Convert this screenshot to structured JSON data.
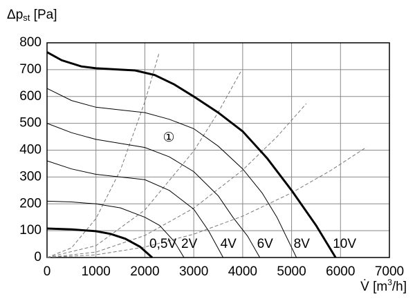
{
  "chart_data": {
    "type": "line",
    "ylabel_parts": [
      "Δp",
      "st",
      " [Pa]"
    ],
    "xlabel_parts": [
      "V̇ [m",
      "3",
      "/h]"
    ],
    "xlim": [
      0,
      7000
    ],
    "ylim": [
      0,
      800
    ],
    "xticks": [
      0,
      1000,
      2000,
      3000,
      4000,
      5000,
      6000,
      7000
    ],
    "yticks": [
      0,
      100,
      200,
      300,
      400,
      500,
      600,
      700,
      800
    ],
    "grid": true,
    "series": [
      {
        "name": "0,5V",
        "color": "#000",
        "line_width": 3,
        "x": [
          0,
          500,
          1000,
          1300,
          1600,
          1900,
          2150
        ],
        "values": [
          108,
          105,
          98,
          88,
          70,
          40,
          0
        ]
      },
      {
        "name": "2V",
        "color": "#000",
        "line_width": 1,
        "x": [
          0,
          500,
          1000,
          1500,
          2000,
          2300,
          2600,
          2800
        ],
        "values": [
          210,
          207,
          200,
          185,
          150,
          120,
          60,
          0
        ]
      },
      {
        "name": "4V",
        "color": "#000",
        "line_width": 1,
        "x": [
          0,
          500,
          1000,
          1500,
          2000,
          2500,
          3000,
          3300,
          3600
        ],
        "values": [
          360,
          330,
          310,
          300,
          290,
          250,
          180,
          100,
          0
        ]
      },
      {
        "name": "6V",
        "color": "#000",
        "line_width": 1,
        "x": [
          0,
          500,
          1000,
          1500,
          2000,
          2500,
          3000,
          3500,
          3800,
          4100,
          4350
        ],
        "values": [
          500,
          465,
          440,
          425,
          410,
          375,
          320,
          230,
          150,
          80,
          0
        ]
      },
      {
        "name": "8V",
        "color": "#000",
        "line_width": 1,
        "x": [
          0,
          500,
          1000,
          1500,
          2000,
          2500,
          3000,
          3500,
          4000,
          4400,
          4700,
          5100
        ],
        "values": [
          630,
          585,
          560,
          550,
          540,
          515,
          480,
          415,
          330,
          240,
          150,
          0
        ]
      },
      {
        "name": "10V",
        "color": "#000",
        "line_width": 3,
        "x": [
          0,
          300,
          700,
          1000,
          1500,
          1800,
          2200,
          2600,
          3000,
          3500,
          4000,
          4500,
          5000,
          5500,
          5900
        ],
        "values": [
          765,
          735,
          712,
          705,
          700,
          697,
          680,
          645,
          600,
          540,
          470,
          370,
          250,
          120,
          0
        ]
      }
    ],
    "system_curves": {
      "style": "dashed",
      "color": "#777",
      "curves": [
        {
          "x": [
            0,
            500,
            1000,
            1500,
            2000,
            2290
          ],
          "values": [
            0,
            36,
            145,
            326,
            580,
            761
          ]
        },
        {
          "x": [
            0,
            1000,
            2000,
            3000,
            3500,
            3960
          ],
          "values": [
            0,
            44,
            177,
            397,
            541,
            692
          ]
        },
        {
          "x": [
            0,
            1000,
            2000,
            3000,
            4000,
            4700,
            5300
          ],
          "values": [
            0,
            20,
            82,
            184,
            326,
            450,
            573
          ]
        },
        {
          "x": [
            0,
            1000,
            2000,
            3000,
            4000,
            5000,
            5800,
            6530
          ],
          "values": [
            0,
            10,
            39,
            87,
            154,
            241,
            324,
            411
          ]
        }
      ]
    },
    "annotations": [
      {
        "text": "①",
        "x": 2490,
        "y": 445
      }
    ]
  }
}
